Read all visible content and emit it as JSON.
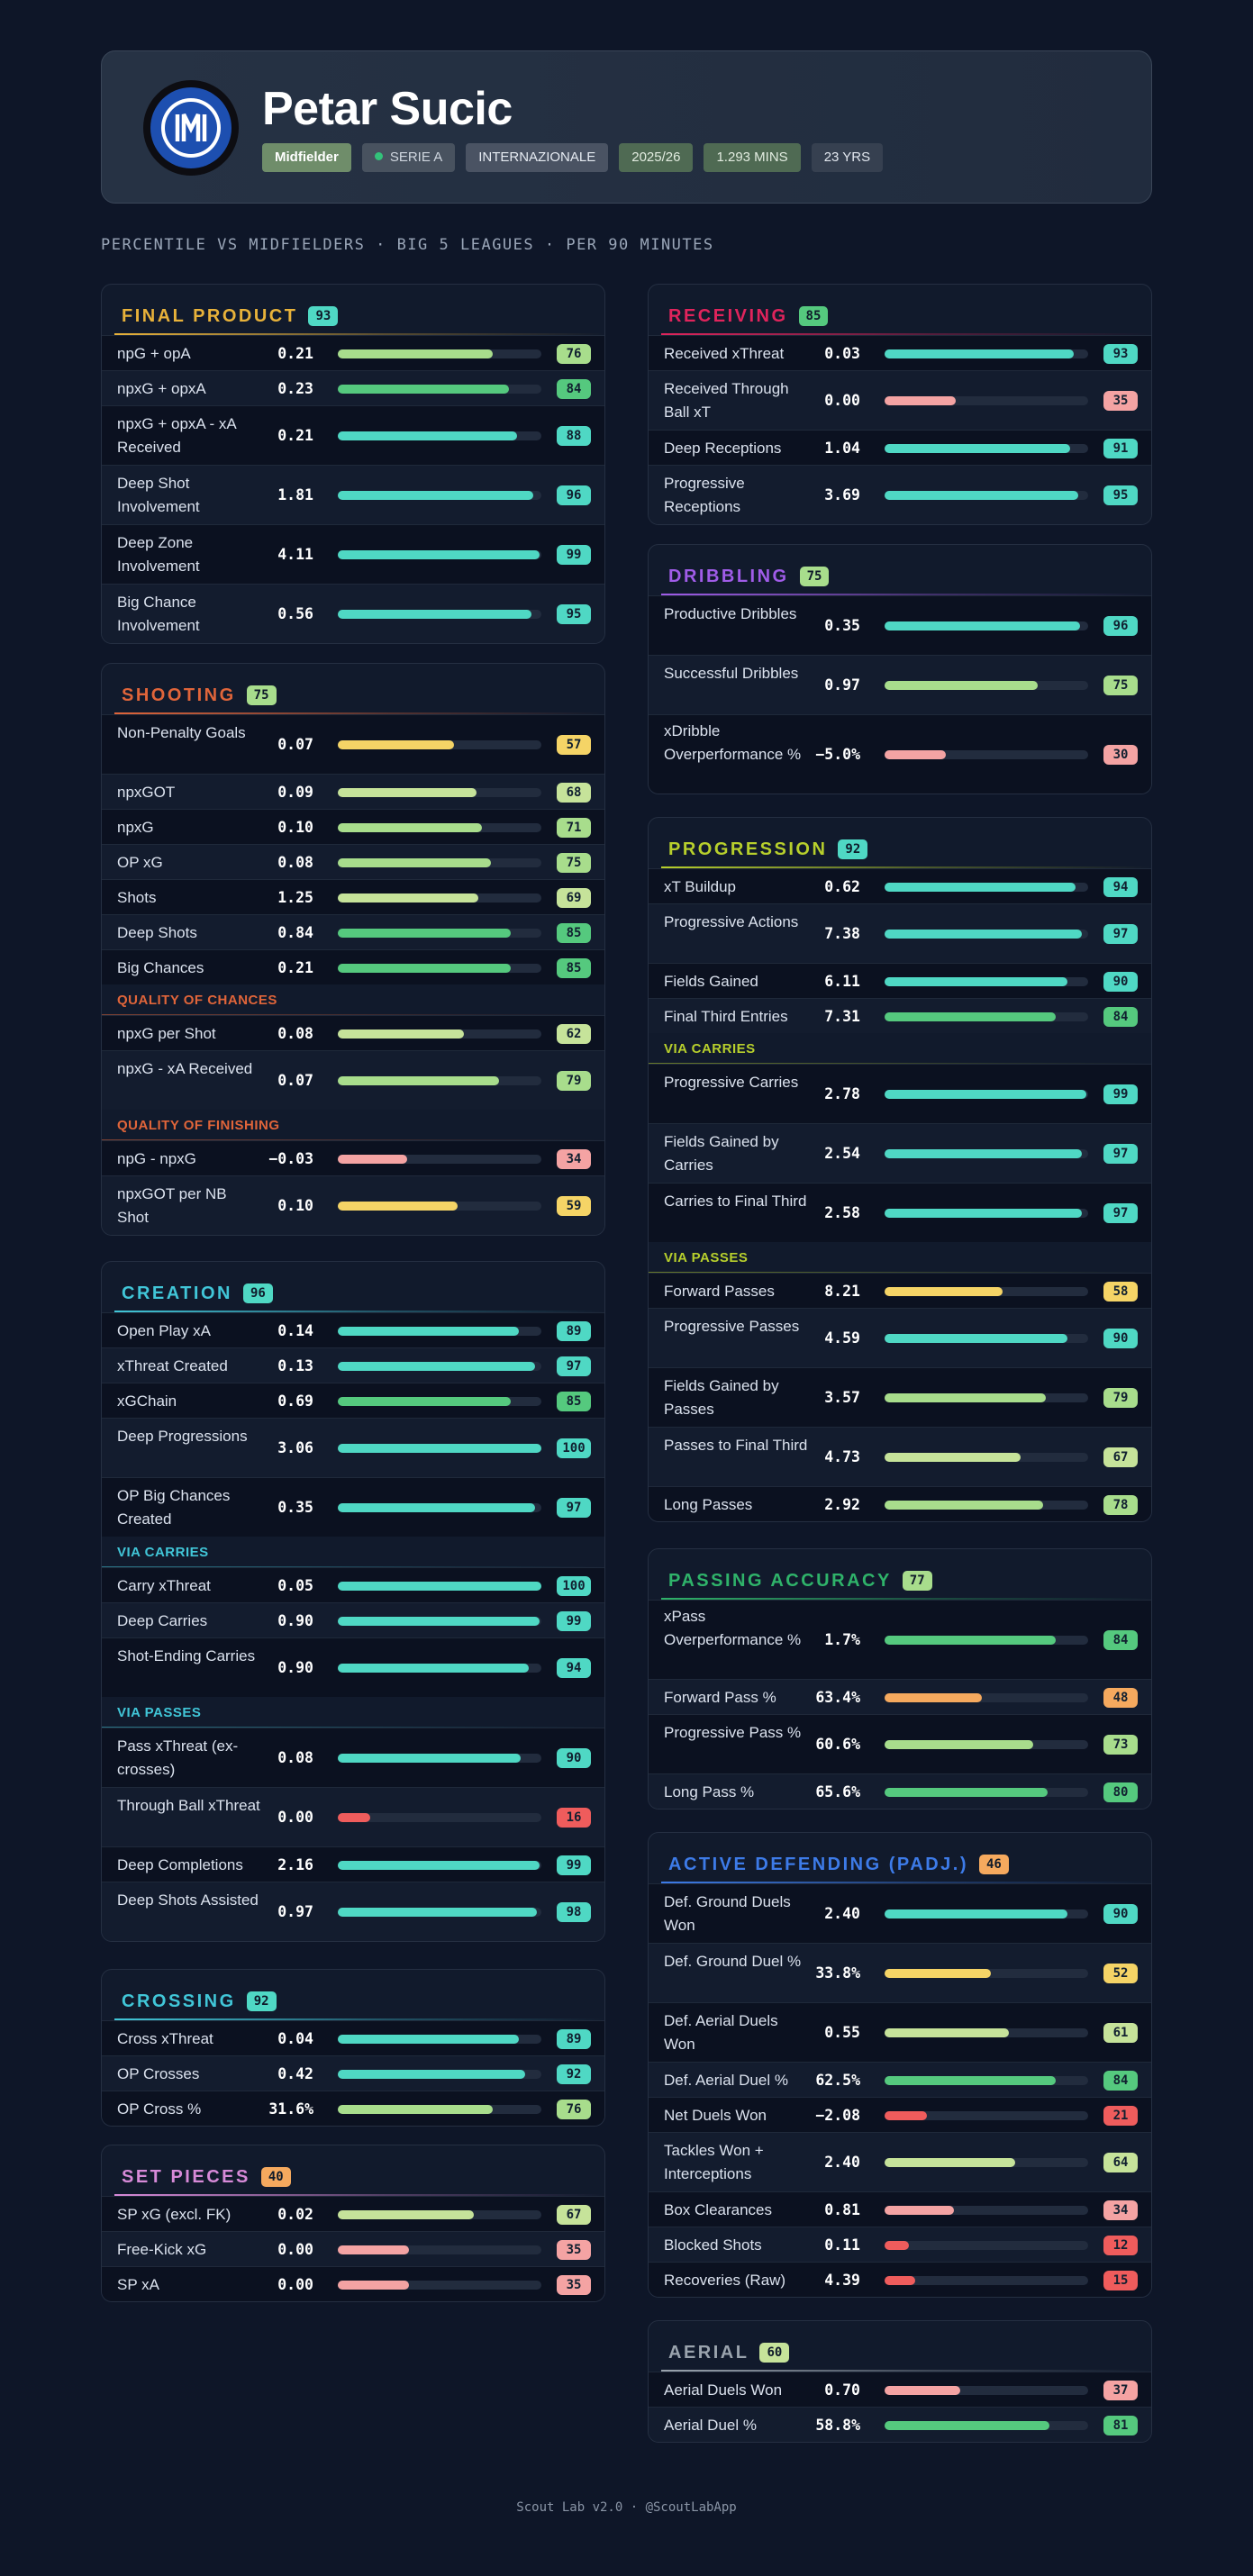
{
  "header": {
    "player_name": "Petar Sucic",
    "badges": {
      "position": "Midfielder",
      "league": "SERIE A",
      "club": "INTERNAZIONALE",
      "season": "2025/26",
      "minutes": "1.293 MINS",
      "age": "23 YRS"
    },
    "logo_icon": "inter-milan-crest-icon",
    "logo_text": "IMI"
  },
  "subtitle": "PERCENTILE VS MIDFIELDERS · BIG 5 LEAGUES · PER 90 MINUTES",
  "colors": {
    "p90": "#4fd8c4",
    "p80": "#55c97e",
    "p70": "#a8dd8c",
    "p60": "#c6e39a",
    "p50": "#f5d466",
    "p40": "#f5a95e",
    "p30": "#f4a3a3",
    "low": "#ef5c5c"
  },
  "sections": [
    {
      "title": "FINAL PRODUCT",
      "score": "93",
      "color": "#e8b23a",
      "rows": [
        {
          "type": "stat",
          "label": "npG + opA",
          "value": "0.21",
          "pct": 76
        },
        {
          "type": "stat",
          "label": "npxG + opxA",
          "value": "0.23",
          "pct": 84
        },
        {
          "type": "stat",
          "label": "npxG + opxA - xA Received",
          "value": "0.21",
          "pct": 88
        },
        {
          "type": "stat",
          "label": "Deep Shot Involvement",
          "value": "1.81",
          "pct": 96
        },
        {
          "type": "stat",
          "label": "Deep Zone Involvement",
          "value": "4.11",
          "pct": 99
        },
        {
          "type": "stat",
          "label": "Big Chance Involvement",
          "value": "0.56",
          "pct": 95
        }
      ]
    },
    {
      "title": "SHOOTING",
      "score": "75",
      "color": "#e0653a",
      "rows": [
        {
          "type": "stat",
          "label": "Non-Penalty Goals",
          "value": "0.07",
          "pct": 57
        },
        {
          "type": "stat",
          "label": "npxGOT",
          "value": "0.09",
          "pct": 68
        },
        {
          "type": "stat",
          "label": "npxG",
          "value": "0.10",
          "pct": 71
        },
        {
          "type": "stat",
          "label": "OP xG",
          "value": "0.08",
          "pct": 75
        },
        {
          "type": "stat",
          "label": "Shots",
          "value": "1.25",
          "pct": 69
        },
        {
          "type": "stat",
          "label": "Deep Shots",
          "value": "0.84",
          "pct": 85
        },
        {
          "type": "stat",
          "label": "Big Chances",
          "value": "0.21",
          "pct": 85
        },
        {
          "type": "sub",
          "label": "QUALITY OF CHANCES"
        },
        {
          "type": "stat",
          "label": "npxG per Shot",
          "value": "0.08",
          "pct": 62
        },
        {
          "type": "stat",
          "label": "npxG - xA Received",
          "value": "0.07",
          "pct": 79
        },
        {
          "type": "sub",
          "label": "QUALITY OF FINISHING"
        },
        {
          "type": "stat",
          "label": "npG - npxG",
          "value": "−0.03",
          "pct": 34
        },
        {
          "type": "stat",
          "label": "npxGOT per NB Shot",
          "value": "0.10",
          "pct": 59
        }
      ]
    },
    {
      "title": "CREATION",
      "score": "96",
      "color": "#41c6d8",
      "rows": [
        {
          "type": "stat",
          "label": "Open Play xA",
          "value": "0.14",
          "pct": 89
        },
        {
          "type": "stat",
          "label": "xThreat Created",
          "value": "0.13",
          "pct": 97
        },
        {
          "type": "stat",
          "label": "xGChain",
          "value": "0.69",
          "pct": 85
        },
        {
          "type": "stat",
          "label": "Deep Progressions",
          "value": "3.06",
          "pct": 100
        },
        {
          "type": "stat",
          "label": "OP Big Chances Created",
          "value": "0.35",
          "pct": 97
        },
        {
          "type": "sub",
          "label": "VIA CARRIES"
        },
        {
          "type": "stat",
          "label": "Carry xThreat",
          "value": "0.05",
          "pct": 100
        },
        {
          "type": "stat",
          "label": "Deep Carries",
          "value": "0.90",
          "pct": 99
        },
        {
          "type": "stat",
          "label": "Shot-Ending Carries",
          "value": "0.90",
          "pct": 94
        },
        {
          "type": "sub",
          "label": "VIA PASSES"
        },
        {
          "type": "stat",
          "label": "Pass xThreat (ex-crosses)",
          "value": "0.08",
          "pct": 90
        },
        {
          "type": "stat",
          "label": "Through Ball xThreat",
          "value": "0.00",
          "pct": 16
        },
        {
          "type": "stat",
          "label": "Deep Completions",
          "value": "2.16",
          "pct": 99
        },
        {
          "type": "stat",
          "label": "Deep Shots Assisted",
          "value": "0.97",
          "pct": 98
        }
      ]
    },
    {
      "title": "CROSSING",
      "score": "92",
      "color": "#41c6d8",
      "rows": [
        {
          "type": "stat",
          "label": "Cross xThreat",
          "value": "0.04",
          "pct": 89
        },
        {
          "type": "stat",
          "label": "OP Crosses",
          "value": "0.42",
          "pct": 92
        },
        {
          "type": "stat",
          "label": "OP Cross %",
          "value": "31.6%",
          "pct": 76
        }
      ]
    },
    {
      "title": "SET PIECES",
      "score": "40",
      "color": "#d78ad8",
      "rows": [
        {
          "type": "stat",
          "label": "SP xG (excl. FK)",
          "value": "0.02",
          "pct": 67
        },
        {
          "type": "stat",
          "label": "Free-Kick xG",
          "value": "0.00",
          "pct": 35
        },
        {
          "type": "stat",
          "label": "SP xA",
          "value": "0.00",
          "pct": 35
        }
      ]
    },
    {
      "title": "RECEIVING",
      "score": "85",
      "color": "#e0245c",
      "rows": [
        {
          "type": "stat",
          "label": "Received xThreat",
          "value": "0.03",
          "pct": 93
        },
        {
          "type": "stat",
          "label": "Received Through Ball xT",
          "value": "0.00",
          "pct": 35
        },
        {
          "type": "stat",
          "label": "Deep Receptions",
          "value": "1.04",
          "pct": 91
        },
        {
          "type": "stat",
          "label": "Progressive Receptions",
          "value": "3.69",
          "pct": 95
        }
      ]
    },
    {
      "title": "DRIBBLING",
      "score": "75",
      "color": "#a05ce8",
      "rows": [
        {
          "type": "stat",
          "label": "Productive Dribbles",
          "value": "0.35",
          "pct": 96
        },
        {
          "type": "stat",
          "label": "Successful Dribbles",
          "value": "0.97",
          "pct": 75
        },
        {
          "type": "stat",
          "label": "xDribble Overperformance %",
          "value": "−5.0%",
          "pct": 30
        }
      ]
    },
    {
      "title": "PROGRESSION",
      "score": "92",
      "color": "#b7cf2c",
      "rows": [
        {
          "type": "stat",
          "label": "xT Buildup",
          "value": "0.62",
          "pct": 94
        },
        {
          "type": "stat",
          "label": "Progressive Actions",
          "value": "7.38",
          "pct": 97
        },
        {
          "type": "stat",
          "label": "Fields Gained",
          "value": "6.11",
          "pct": 90
        },
        {
          "type": "stat",
          "label": "Final Third Entries",
          "value": "7.31",
          "pct": 84
        },
        {
          "type": "sub",
          "label": "VIA CARRIES"
        },
        {
          "type": "stat",
          "label": "Progressive Carries",
          "value": "2.78",
          "pct": 99
        },
        {
          "type": "stat",
          "label": "Fields Gained by Carries",
          "value": "2.54",
          "pct": 97
        },
        {
          "type": "stat",
          "label": "Carries to Final Third",
          "value": "2.58",
          "pct": 97
        },
        {
          "type": "sub",
          "label": "VIA PASSES"
        },
        {
          "type": "stat",
          "label": "Forward Passes",
          "value": "8.21",
          "pct": 58
        },
        {
          "type": "stat",
          "label": "Progressive Passes",
          "value": "4.59",
          "pct": 90
        },
        {
          "type": "stat",
          "label": "Fields Gained by Passes",
          "value": "3.57",
          "pct": 79
        },
        {
          "type": "stat",
          "label": "Passes to Final Third",
          "value": "4.73",
          "pct": 67
        },
        {
          "type": "stat",
          "label": "Long Passes",
          "value": "2.92",
          "pct": 78
        }
      ]
    },
    {
      "title": "PASSING ACCURACY",
      "score": "77",
      "color": "#2fb36a",
      "rows": [
        {
          "type": "stat",
          "label": "xPass Overperformance %",
          "value": "1.7%",
          "pct": 84
        },
        {
          "type": "stat",
          "label": "Forward Pass %",
          "value": "63.4%",
          "pct": 48
        },
        {
          "type": "stat",
          "label": "Progressive Pass %",
          "value": "60.6%",
          "pct": 73
        },
        {
          "type": "stat",
          "label": "Long Pass %",
          "value": "65.6%",
          "pct": 80
        }
      ]
    },
    {
      "title": "ACTIVE DEFENDING (PADJ.)",
      "score": "46",
      "color": "#3d7be8",
      "rows": [
        {
          "type": "stat",
          "label": "Def. Ground Duels Won",
          "value": "2.40",
          "pct": 90
        },
        {
          "type": "stat",
          "label": "Def. Ground Duel %",
          "value": "33.8%",
          "pct": 52
        },
        {
          "type": "stat",
          "label": "Def. Aerial Duels Won",
          "value": "0.55",
          "pct": 61
        },
        {
          "type": "stat",
          "label": "Def. Aerial Duel %",
          "value": "62.5%",
          "pct": 84
        },
        {
          "type": "stat",
          "label": "Net Duels Won",
          "value": "−2.08",
          "pct": 21
        },
        {
          "type": "stat",
          "label": "Tackles Won + Interceptions",
          "value": "2.40",
          "pct": 64
        },
        {
          "type": "stat",
          "label": "Box Clearances",
          "value": "0.81",
          "pct": 34
        },
        {
          "type": "stat",
          "label": "Blocked Shots",
          "value": "0.11",
          "pct": 12
        },
        {
          "type": "stat",
          "label": "Recoveries (Raw)",
          "value": "4.39",
          "pct": 15
        }
      ]
    },
    {
      "title": "AERIAL",
      "score": "60",
      "color": "#9aa3ad",
      "rows": [
        {
          "type": "stat",
          "label": "Aerial Duels Won",
          "value": "0.70",
          "pct": 37
        },
        {
          "type": "stat",
          "label": "Aerial Duel %",
          "value": "58.8%",
          "pct": 81
        }
      ]
    }
  ],
  "footer": "Scout Lab v2.0 · @ScoutLabApp"
}
